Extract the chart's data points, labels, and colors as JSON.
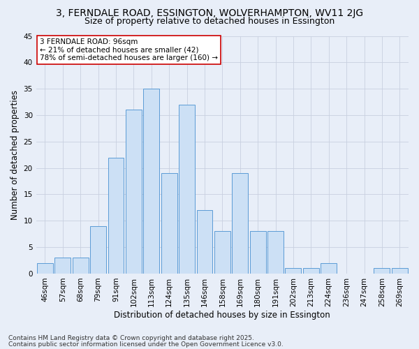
{
  "title1": "3, FERNDALE ROAD, ESSINGTON, WOLVERHAMPTON, WV11 2JG",
  "title2": "Size of property relative to detached houses in Essington",
  "xlabel": "Distribution of detached houses by size in Essington",
  "ylabel": "Number of detached properties",
  "bar_labels": [
    "46sqm",
    "57sqm",
    "68sqm",
    "79sqm",
    "91sqm",
    "102sqm",
    "113sqm",
    "124sqm",
    "135sqm",
    "146sqm",
    "158sqm",
    "169sqm",
    "180sqm",
    "191sqm",
    "202sqm",
    "213sqm",
    "224sqm",
    "236sqm",
    "247sqm",
    "258sqm",
    "269sqm"
  ],
  "bar_values": [
    2,
    3,
    3,
    9,
    22,
    31,
    35,
    19,
    32,
    12,
    8,
    19,
    8,
    8,
    1,
    1,
    2,
    0,
    0,
    1,
    1
  ],
  "bar_color": "#cce0f5",
  "bar_edge_color": "#5b9bd5",
  "annotation_text": "3 FERNDALE ROAD: 96sqm\n← 21% of detached houses are smaller (42)\n78% of semi-detached houses are larger (160) →",
  "annotation_box_color": "#ffffff",
  "annotation_box_edge_color": "#cc0000",
  "ylim": [
    0,
    45
  ],
  "yticks": [
    0,
    5,
    10,
    15,
    20,
    25,
    30,
    35,
    40,
    45
  ],
  "bg_color": "#e8eef8",
  "grid_color": "#c8d0e0",
  "footer1": "Contains HM Land Registry data © Crown copyright and database right 2025.",
  "footer2": "Contains public sector information licensed under the Open Government Licence v3.0.",
  "title1_fontsize": 10,
  "title2_fontsize": 9,
  "xlabel_fontsize": 8.5,
  "ylabel_fontsize": 8.5,
  "tick_fontsize": 7.5,
  "annotation_fontsize": 7.5,
  "footer_fontsize": 6.5
}
